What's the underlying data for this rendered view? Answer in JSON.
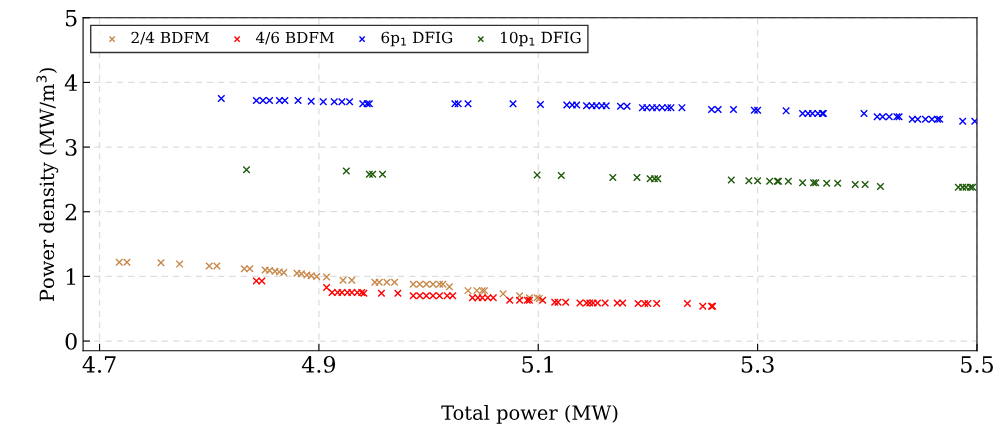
{
  "chart_data": {
    "type": "scatter",
    "xlabel": "Total power (MW)",
    "ylabel": "Power density (MW/m$^{3}$)",
    "xlim": [
      4.685,
      5.5
    ],
    "ylim": [
      -0.15,
      5
    ],
    "xticks": [
      4.7,
      4.9,
      5.1,
      5.3,
      5.5
    ],
    "yticks": [
      0,
      1,
      2,
      3,
      4,
      5
    ],
    "grid": true,
    "legend": "top left",
    "marker": "cross",
    "series": [
      {
        "name": "2/4 BDFM",
        "color": "#c8884a",
        "x": [
          4.718,
          4.725,
          4.756,
          4.773,
          4.8,
          4.807,
          4.832,
          4.837,
          4.851,
          4.855,
          4.86,
          4.864,
          4.868,
          4.88,
          4.884,
          4.889,
          4.893,
          4.898,
          4.907,
          4.922,
          4.93,
          4.951,
          4.955,
          4.962,
          4.969,
          4.986,
          4.992,
          4.998,
          5.004,
          5.01,
          5.013,
          5.019,
          5.036,
          5.044,
          5.049,
          5.051,
          5.068,
          5.083,
          5.092,
          5.099,
          5.101
        ],
        "values": [
          1.22,
          1.22,
          1.21,
          1.19,
          1.16,
          1.16,
          1.12,
          1.12,
          1.1,
          1.09,
          1.08,
          1.07,
          1.06,
          1.05,
          1.04,
          1.02,
          1.01,
          1.0,
          0.99,
          0.94,
          0.94,
          0.91,
          0.91,
          0.91,
          0.91,
          0.88,
          0.88,
          0.88,
          0.88,
          0.88,
          0.88,
          0.84,
          0.78,
          0.78,
          0.78,
          0.78,
          0.73,
          0.7,
          0.67,
          0.67,
          0.66
        ]
      },
      {
        "name": "4/6 BDFM",
        "color": "#ff0000",
        "x": [
          4.843,
          4.848,
          4.907,
          4.912,
          4.917,
          4.921,
          4.926,
          4.93,
          4.935,
          4.939,
          4.941,
          4.957,
          4.972,
          4.986,
          4.992,
          4.998,
          5.004,
          5.01,
          5.017,
          5.022,
          5.04,
          5.045,
          5.049,
          5.054,
          5.059,
          5.074,
          5.083,
          5.09,
          5.092,
          5.104,
          5.115,
          5.118,
          5.125,
          5.138,
          5.144,
          5.147,
          5.15,
          5.154,
          5.161,
          5.172,
          5.177,
          5.191,
          5.197,
          5.2,
          5.208,
          5.236,
          5.25,
          5.258,
          5.259
        ],
        "values": [
          0.93,
          0.93,
          0.83,
          0.75,
          0.75,
          0.75,
          0.75,
          0.75,
          0.75,
          0.75,
          0.74,
          0.74,
          0.74,
          0.7,
          0.7,
          0.7,
          0.7,
          0.7,
          0.7,
          0.7,
          0.67,
          0.67,
          0.67,
          0.67,
          0.67,
          0.63,
          0.63,
          0.63,
          0.63,
          0.63,
          0.6,
          0.6,
          0.6,
          0.59,
          0.59,
          0.59,
          0.59,
          0.59,
          0.59,
          0.59,
          0.59,
          0.58,
          0.58,
          0.58,
          0.58,
          0.58,
          0.54,
          0.54,
          0.54
        ]
      },
      {
        "name": "6p$_{1}$ DFIG",
        "color": "#0000ff",
        "x": [
          4.811,
          4.843,
          4.849,
          4.855,
          4.864,
          4.869,
          4.881,
          4.893,
          4.904,
          4.914,
          4.921,
          4.928,
          4.94,
          4.944,
          4.946,
          5.024,
          5.027,
          5.036,
          5.077,
          5.102,
          5.126,
          5.131,
          5.135,
          5.144,
          5.149,
          5.153,
          5.158,
          5.162,
          5.175,
          5.181,
          5.195,
          5.199,
          5.204,
          5.208,
          5.213,
          5.218,
          5.221,
          5.231,
          5.258,
          5.264,
          5.278,
          5.297,
          5.3,
          5.326,
          5.341,
          5.346,
          5.35,
          5.355,
          5.359,
          5.36,
          5.397,
          5.409,
          5.414,
          5.42,
          5.427,
          5.429,
          5.441,
          5.446,
          5.453,
          5.459,
          5.464,
          5.466,
          5.487,
          5.498
        ],
        "values": [
          3.75,
          3.72,
          3.72,
          3.72,
          3.72,
          3.72,
          3.72,
          3.71,
          3.7,
          3.7,
          3.7,
          3.7,
          3.67,
          3.67,
          3.67,
          3.67,
          3.67,
          3.67,
          3.67,
          3.66,
          3.65,
          3.65,
          3.65,
          3.64,
          3.64,
          3.64,
          3.64,
          3.64,
          3.63,
          3.63,
          3.61,
          3.61,
          3.61,
          3.61,
          3.61,
          3.61,
          3.61,
          3.61,
          3.58,
          3.58,
          3.58,
          3.57,
          3.57,
          3.56,
          3.52,
          3.52,
          3.52,
          3.52,
          3.52,
          3.52,
          3.52,
          3.47,
          3.47,
          3.47,
          3.47,
          3.47,
          3.43,
          3.43,
          3.43,
          3.43,
          3.43,
          3.43,
          3.4,
          3.4
        ]
      },
      {
        "name": "10p$_{1}$ DFIG",
        "color": "#1f5a0a",
        "x": [
          4.834,
          4.925,
          4.946,
          4.949,
          4.958,
          5.099,
          5.121,
          5.168,
          5.19,
          5.202,
          5.206,
          5.209,
          5.276,
          5.292,
          5.3,
          5.311,
          5.318,
          5.319,
          5.328,
          5.341,
          5.351,
          5.353,
          5.363,
          5.373,
          5.389,
          5.398,
          5.412,
          5.483,
          5.487,
          5.49,
          5.494,
          5.496
        ],
        "values": [
          2.65,
          2.63,
          2.58,
          2.58,
          2.58,
          2.57,
          2.56,
          2.53,
          2.53,
          2.51,
          2.51,
          2.51,
          2.49,
          2.48,
          2.48,
          2.47,
          2.47,
          2.47,
          2.47,
          2.45,
          2.45,
          2.45,
          2.44,
          2.44,
          2.42,
          2.42,
          2.39,
          2.38,
          2.38,
          2.38,
          2.38,
          2.38
        ]
      }
    ]
  }
}
